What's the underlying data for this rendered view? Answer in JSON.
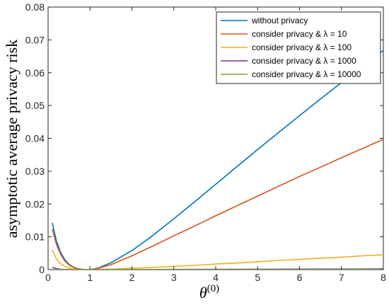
{
  "chart_data": {
    "type": "line",
    "ylabel": "asymptotic average privacy risk",
    "xlabel_main": "θ",
    "xlabel_sup": "(0)",
    "xlim": [
      0,
      8
    ],
    "ylim": [
      0,
      0.08
    ],
    "xticks": [
      0,
      1,
      2,
      3,
      4,
      5,
      6,
      7,
      8
    ],
    "yticks": [
      0,
      0.01,
      0.02,
      0.03,
      0.04,
      0.05,
      0.06,
      0.07,
      0.08
    ],
    "xtick_labels": [
      "0",
      "1",
      "2",
      "3",
      "4",
      "5",
      "6",
      "7",
      "8"
    ],
    "ytick_labels": [
      "0",
      "0.01",
      "0.02",
      "0.03",
      "0.04",
      "0.05",
      "0.06",
      "0.07",
      "0.08"
    ],
    "grid": false,
    "legend_position": "top-right",
    "series": [
      {
        "name": "without privacy",
        "color": "#0072BD",
        "x": [
          0.1,
          0.2,
          0.3,
          0.4,
          0.5,
          0.6,
          0.7,
          0.8,
          0.9,
          1.0,
          1.2,
          1.5,
          2.0,
          2.5,
          3.0,
          3.5,
          4.0,
          4.5,
          5.0,
          5.5,
          6.0,
          6.5,
          7.0,
          7.5,
          8.0
        ],
        "y": [
          0.0143,
          0.0087,
          0.0052,
          0.003,
          0.0016,
          0.0008,
          0.0003,
          0.0001,
          2e-05,
          0.0,
          0.0005,
          0.0021,
          0.0058,
          0.0104,
          0.0155,
          0.0207,
          0.026,
          0.0313,
          0.0366,
          0.0418,
          0.0469,
          0.052,
          0.057,
          0.0619,
          0.0668
        ]
      },
      {
        "name": "consider privacy & λ = 10",
        "color": "#D95319",
        "x": [
          0.1,
          0.2,
          0.3,
          0.4,
          0.5,
          0.6,
          0.7,
          0.8,
          0.9,
          1.0,
          1.2,
          1.5,
          2.0,
          2.5,
          3.0,
          3.5,
          4.0,
          4.5,
          5.0,
          5.5,
          6.0,
          6.5,
          7.0,
          7.5,
          8.0
        ],
        "y": [
          0.0123,
          0.0077,
          0.0046,
          0.0026,
          0.0014,
          0.0007,
          0.0003,
          0.0001,
          2e-05,
          0.0,
          0.0004,
          0.0015,
          0.0042,
          0.0072,
          0.0103,
          0.0133,
          0.0164,
          0.0194,
          0.0224,
          0.0254,
          0.0284,
          0.0312,
          0.0341,
          0.0369,
          0.0397
        ]
      },
      {
        "name": "consider privacy & λ = 100",
        "color": "#EDB120",
        "x": [
          0.1,
          0.2,
          0.3,
          0.4,
          0.5,
          0.6,
          0.7,
          0.8,
          0.9,
          1.0,
          1.5,
          2.0,
          2.5,
          3.0,
          3.5,
          4.0,
          4.5,
          5.0,
          5.5,
          6.0,
          6.5,
          7.0,
          7.5,
          8.0
        ],
        "y": [
          0.006,
          0.0033,
          0.0018,
          0.001,
          0.0005,
          0.0002,
          0.0001,
          3e-05,
          1e-05,
          0.0,
          0.00015,
          0.0004,
          0.0007,
          0.001,
          0.0013,
          0.0017,
          0.002,
          0.0024,
          0.0028,
          0.0031,
          0.0035,
          0.0038,
          0.0042,
          0.0045
        ]
      },
      {
        "name": "consider privacy & λ = 1000",
        "color": "#7E2F8E",
        "x": [
          0.1,
          0.2,
          0.3,
          0.5,
          1.0,
          2.0,
          4.0,
          6.0,
          8.0
        ],
        "y": [
          0.0007,
          0.0003,
          0.0001,
          2e-05,
          0.0,
          3e-05,
          0.0001,
          0.00015,
          0.0002
        ]
      },
      {
        "name": "consider privacy & λ = 10000",
        "color": "#77AC30",
        "x": [
          0.1,
          0.3,
          1.0,
          2.0,
          4.0,
          6.0,
          8.0
        ],
        "y": [
          3e-05,
          1e-05,
          0.0,
          0.0,
          1e-05,
          1e-05,
          2e-05
        ]
      }
    ]
  }
}
